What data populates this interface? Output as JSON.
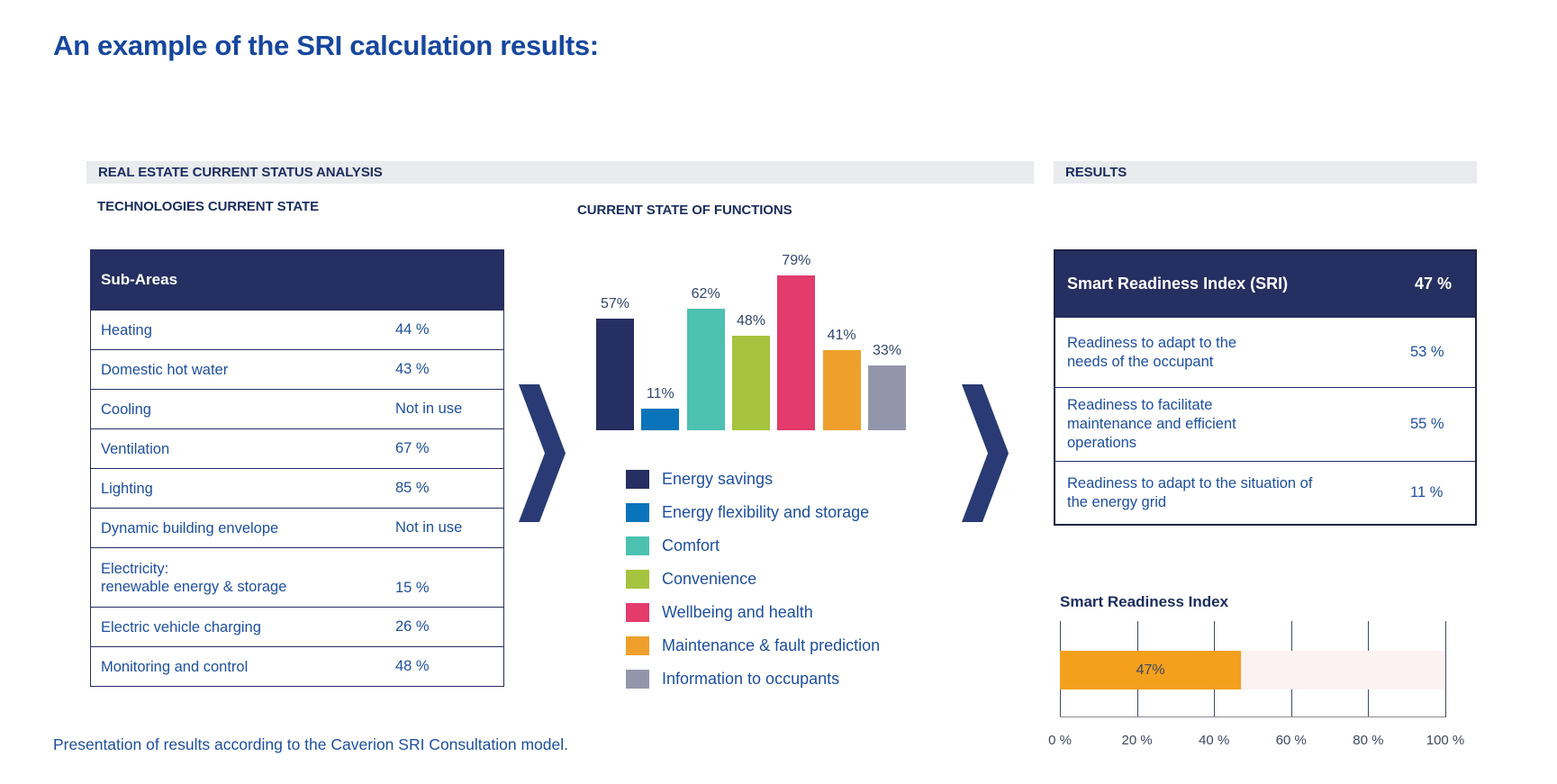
{
  "page": {
    "title": "An example of the SRI calculation results:",
    "footer": "Presentation of results according to the Caverion SRI Consultation model."
  },
  "left_section": {
    "header": "REAL ESTATE CURRENT STATUS ANALYSIS",
    "subheading": "TECHNOLOGIES CURRENT STATE",
    "table": {
      "header": "Sub-Areas",
      "rows": [
        {
          "label": "Heating",
          "value": "44 %"
        },
        {
          "label": "Domestic hot water",
          "value": "43 %"
        },
        {
          "label": "Cooling",
          "value": "Not in use"
        },
        {
          "label": "Ventilation",
          "value": "67 %"
        },
        {
          "label": "Lighting",
          "value": "85 %"
        },
        {
          "label": "Dynamic building envelope",
          "value": "Not in use"
        },
        {
          "label": "Electricity:\nrenewable energy & storage",
          "value": "15 %"
        },
        {
          "label": "Electric vehicle charging",
          "value": "26 %"
        },
        {
          "label": "Monitoring and control",
          "value": "48 %"
        }
      ]
    }
  },
  "results_section": {
    "header": "RESULTS",
    "table": {
      "header_label": "Smart Readiness Index (SRI)",
      "header_value": "47 %",
      "rows": [
        {
          "label": "Readiness to adapt to the\nneeds of the occupant",
          "value": "53 %"
        },
        {
          "label": "Readiness to facilitate\nmaintenance and efficient\noperations",
          "value": "55 %"
        },
        {
          "label": "Readiness to adapt to the situation of\nthe energy grid",
          "value": "11 %"
        }
      ]
    }
  },
  "chart_data": [
    {
      "type": "bar",
      "title": "CURRENT STATE OF FUNCTIONS",
      "categories": [
        "Energy savings",
        "Energy flexibility and storage",
        "Comfort",
        "Convenience",
        "Wellbeing and health",
        "Maintenance & fault prediction",
        "Information to occupants"
      ],
      "values": [
        57,
        11,
        62,
        48,
        79,
        41,
        33
      ],
      "data_labels": [
        "57%",
        "11%",
        "62%",
        "48%",
        "79%",
        "41%",
        "33%"
      ],
      "colors": [
        "#262f61",
        "#0a74ba",
        "#4cc1af",
        "#a5c33f",
        "#e23b6c",
        "#efa02c",
        "#9396ab"
      ],
      "unit": "%",
      "ylim": [
        0,
        100
      ],
      "grid": false,
      "legend_position": "bottom"
    },
    {
      "type": "bar",
      "orientation": "horizontal",
      "title": "Smart Readiness Index",
      "categories": [
        "Smart Readiness Index"
      ],
      "values": [
        47
      ],
      "data_labels": [
        "47%"
      ],
      "bar_color": "#f3a01d",
      "track_color": "#fbf2f1",
      "xlim": [
        0,
        100
      ],
      "x_ticks": [
        "0 %",
        "20 %",
        "40 %",
        "60 %",
        "80 %",
        "100 %"
      ],
      "grid": true
    }
  ]
}
